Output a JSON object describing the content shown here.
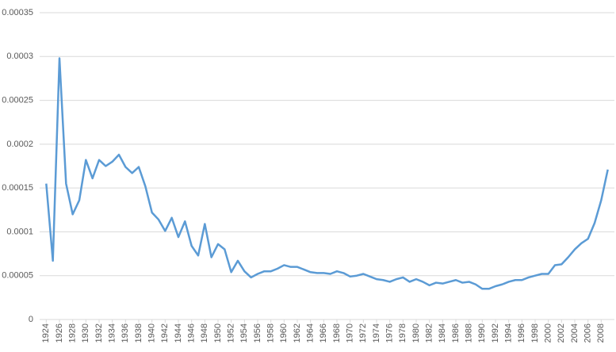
{
  "chart_data": {
    "type": "line",
    "x": [
      1924,
      1925,
      1926,
      1927,
      1928,
      1929,
      1930,
      1931,
      1932,
      1933,
      1934,
      1935,
      1936,
      1937,
      1938,
      1939,
      1940,
      1941,
      1942,
      1943,
      1944,
      1945,
      1946,
      1947,
      1948,
      1949,
      1950,
      1951,
      1952,
      1953,
      1954,
      1955,
      1956,
      1957,
      1958,
      1959,
      1960,
      1961,
      1962,
      1963,
      1964,
      1965,
      1966,
      1967,
      1968,
      1969,
      1970,
      1971,
      1972,
      1973,
      1974,
      1975,
      1976,
      1977,
      1978,
      1979,
      1980,
      1981,
      1982,
      1983,
      1984,
      1985,
      1986,
      1987,
      1988,
      1989,
      1990,
      1991,
      1992,
      1993,
      1994,
      1995,
      1996,
      1997,
      1998,
      1999,
      2000,
      2001,
      2002,
      2003,
      2004,
      2005,
      2006,
      2007,
      2008,
      2009
    ],
    "values": [
      0.000155,
      6.7e-05,
      0.000298,
      0.000155,
      0.00012,
      0.000136,
      0.000182,
      0.000161,
      0.000182,
      0.000175,
      0.00018,
      0.000188,
      0.000174,
      0.000167,
      0.000174,
      0.000152,
      0.000122,
      0.000114,
      0.000101,
      0.000116,
      9.4e-05,
      0.000112,
      8.4e-05,
      7.3e-05,
      0.000109,
      7.1e-05,
      8.6e-05,
      8e-05,
      5.4e-05,
      6.7e-05,
      5.5e-05,
      4.8e-05,
      5.2e-05,
      5.5e-05,
      5.5e-05,
      5.8e-05,
      6.2e-05,
      6e-05,
      6e-05,
      5.7e-05,
      5.4e-05,
      5.3e-05,
      5.3e-05,
      5.2e-05,
      5.5e-05,
      5.3e-05,
      4.9e-05,
      5e-05,
      5.2e-05,
      4.9e-05,
      4.6e-05,
      4.5e-05,
      4.3e-05,
      4.6e-05,
      4.8e-05,
      4.3e-05,
      4.6e-05,
      4.3e-05,
      3.9e-05,
      4.2e-05,
      4.1e-05,
      4.3e-05,
      4.5e-05,
      4.2e-05,
      4.3e-05,
      4e-05,
      3.5e-05,
      3.5e-05,
      3.8e-05,
      4e-05,
      4.3e-05,
      4.5e-05,
      4.5e-05,
      4.8e-05,
      5e-05,
      5.2e-05,
      5.2e-05,
      6.2e-05,
      6.3e-05,
      7.1e-05,
      8e-05,
      8.7e-05,
      9.2e-05,
      0.00011,
      0.000136,
      0.000171
    ],
    "color": "#5b9bd5",
    "xlim": [
      1923,
      2010
    ],
    "xticks": [
      1924,
      1926,
      1928,
      1930,
      1932,
      1934,
      1936,
      1938,
      1940,
      1942,
      1944,
      1946,
      1948,
      1950,
      1952,
      1954,
      1956,
      1958,
      1960,
      1962,
      1964,
      1966,
      1968,
      1970,
      1972,
      1974,
      1976,
      1978,
      1980,
      1982,
      1984,
      1986,
      1988,
      1990,
      1992,
      1994,
      1996,
      1998,
      2000,
      2002,
      2004,
      2006,
      2008
    ],
    "ylim": [
      0,
      0.00035
    ],
    "yticks": [
      0,
      5e-05,
      0.0001,
      0.00015,
      0.0002,
      0.00025,
      0.0003,
      0.00035
    ],
    "grid": true
  }
}
